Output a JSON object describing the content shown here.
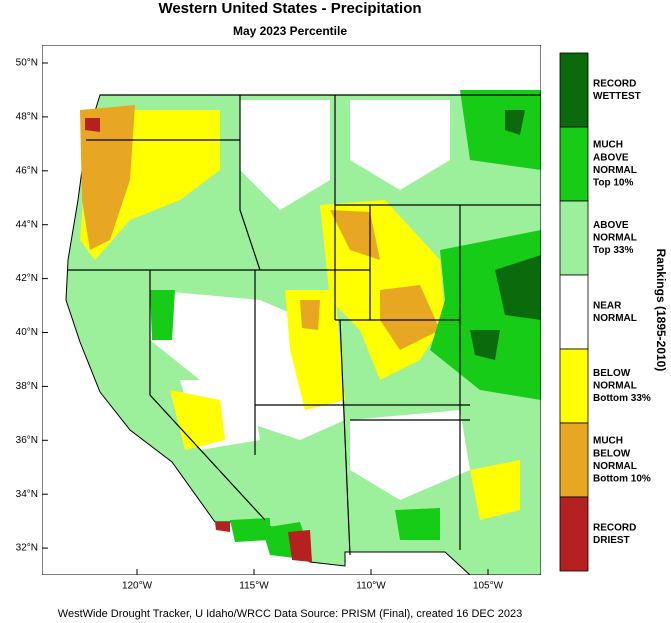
{
  "title": "Western United States - Precipitation",
  "subtitle": "May 2023 Percentile",
  "latitude_labels": [
    "50°N",
    "48°N",
    "46°N",
    "44°N",
    "42°N",
    "40°N",
    "38°N",
    "36°N",
    "34°N",
    "32°N"
  ],
  "longitude_labels": [
    "120°W",
    "115°W",
    "110°W",
    "105°W"
  ],
  "legend": {
    "title": "Rankings (1895-2010)",
    "items": [
      {
        "lines": [
          "RECORD",
          "WETTEST"
        ],
        "color": "#0b6a0b"
      },
      {
        "lines": [
          "MUCH",
          "ABOVE",
          "NORMAL",
          "Top 10%"
        ],
        "color": "#16cc16"
      },
      {
        "lines": [
          "ABOVE",
          "NORMAL",
          "Top 33%"
        ],
        "color": "#9cf09c"
      },
      {
        "lines": [
          "NEAR",
          "NORMAL"
        ],
        "color": "#ffffff"
      },
      {
        "lines": [
          "BELOW",
          "NORMAL",
          "Bottom 33%"
        ],
        "color": "#ffff00"
      },
      {
        "lines": [
          "MUCH",
          "BELOW",
          "NORMAL",
          "Bottom 10%"
        ],
        "color": "#e8a722"
      },
      {
        "lines": [
          "RECORD",
          "DRIEST"
        ],
        "color": "#b52020"
      }
    ]
  },
  "footer": "WestWide Drought Tracker, U Idaho/WRCC Data Source: PRISM (Final), created 16 DEC 2023"
}
